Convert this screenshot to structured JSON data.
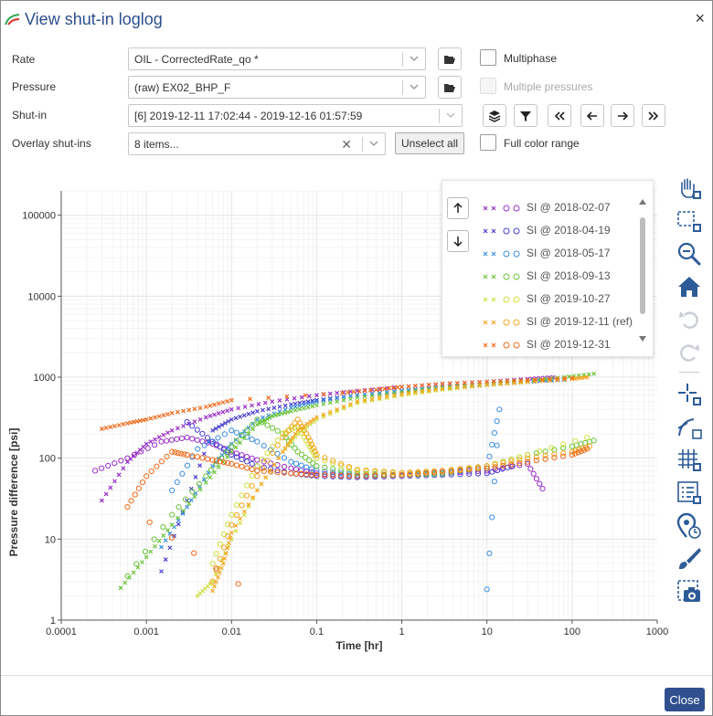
{
  "window": {
    "title": "View shut-in loglog",
    "close_glyph": "×"
  },
  "form": {
    "rate": {
      "label": "Rate",
      "value": "OIL - CorrectedRate_qo *"
    },
    "pressure": {
      "label": "Pressure",
      "value": "(raw) EX02_BHP_F"
    },
    "shutin": {
      "label": "Shut-in",
      "value": "[6] 2019-12-11 17:02:44 - 2019-12-16 01:57:59"
    },
    "overlay": {
      "label": "Overlay shut-ins",
      "value": "8 items...",
      "unselect_label": "Unselect all"
    },
    "multiphase_label": "Multiphase",
    "multiple_pressures_label": "Multiple pressures",
    "full_color_range_label": "Full color range"
  },
  "nav_icons": [
    "layers-icon",
    "filter-icon",
    "first-icon",
    "prev-icon",
    "next-icon",
    "last-icon"
  ],
  "toolbar_icons": [
    "pan-icon",
    "box-zoom-icon",
    "zoom-out-icon",
    "home-icon",
    "undo-icon",
    "redo-icon",
    "crosshair-icon",
    "line-tool-icon",
    "grid-icon",
    "legend-toggle-icon",
    "hover-icon",
    "style-icon",
    "screenshot-icon"
  ],
  "legend": {
    "items": [
      {
        "label": "SI @ 2018-02-07",
        "color": "#9b30c8"
      },
      {
        "label": "SI @ 2018-04-19",
        "color": "#4a3fd0"
      },
      {
        "label": "SI @ 2018-05-17",
        "color": "#3d8fe0"
      },
      {
        "label": "SI @ 2018-09-13",
        "color": "#6cc43c"
      },
      {
        "label": "SI @ 2019-10-27",
        "color": "#cfe040"
      },
      {
        "label": "SI @ 2019-12-11 (ref)",
        "color": "#f5a623"
      },
      {
        "label": "SI @ 2019-12-31",
        "color": "#f06a1a"
      }
    ]
  },
  "chart_data": {
    "type": "scatter",
    "xscale": "log",
    "yscale": "log",
    "xlabel": "Time [hr]",
    "ylabel": "Pressure difference [psi]",
    "xlim": [
      0.0001,
      1000
    ],
    "ylim": [
      1,
      200000
    ],
    "x_ticks": [
      "0.0001",
      "0.001",
      "0.01",
      "0.1",
      "1",
      "10",
      "100",
      "1000"
    ],
    "y_ticks": [
      "1",
      "10",
      "100",
      "1000",
      "10000",
      "100000"
    ],
    "grid": true,
    "series": [
      {
        "name": "SI @ 2018-02-07",
        "color": "#9b30c8",
        "pressure": [
          [
            0.0003,
            30
          ],
          [
            0.0006,
            90
          ],
          [
            0.001,
            150
          ],
          [
            0.002,
            220
          ],
          [
            0.005,
            320
          ],
          [
            0.01,
            400
          ],
          [
            0.03,
            500
          ],
          [
            0.1,
            600
          ],
          [
            0.3,
            680
          ],
          [
            1,
            760
          ],
          [
            3,
            820
          ],
          [
            10,
            880
          ],
          [
            30,
            950
          ],
          [
            60,
            1000
          ]
        ],
        "derivative": [
          [
            0.00025,
            70
          ],
          [
            0.0006,
            100
          ],
          [
            0.0015,
            160
          ],
          [
            0.003,
            180
          ],
          [
            0.006,
            150
          ],
          [
            0.01,
            120
          ],
          [
            0.02,
            95
          ],
          [
            0.05,
            75
          ],
          [
            0.1,
            65
          ],
          [
            0.3,
            60
          ],
          [
            1,
            62
          ],
          [
            3,
            65
          ],
          [
            10,
            70
          ],
          [
            30,
            85
          ],
          [
            45,
            42
          ]
        ]
      },
      {
        "name": "SI @ 2018-04-19",
        "color": "#4a3fd0",
        "pressure": [
          [
            0.0015,
            4
          ],
          [
            0.003,
            30
          ],
          [
            0.006,
            220
          ],
          [
            0.01,
            300
          ],
          [
            0.02,
            380
          ],
          [
            0.05,
            460
          ],
          [
            0.1,
            520
          ],
          [
            0.3,
            600
          ],
          [
            1,
            680
          ],
          [
            3,
            760
          ],
          [
            10,
            820
          ],
          [
            30,
            880
          ],
          [
            80,
            930
          ]
        ],
        "derivative": [
          [
            0.003,
            280
          ],
          [
            0.006,
            160
          ],
          [
            0.01,
            110
          ],
          [
            0.02,
            80
          ],
          [
            0.05,
            65
          ],
          [
            0.1,
            60
          ],
          [
            0.3,
            58
          ],
          [
            1,
            60
          ],
          [
            3,
            62
          ],
          [
            10,
            65
          ],
          [
            20,
            80
          ]
        ]
      },
      {
        "name": "SI @ 2018-05-17",
        "color": "#3d8fe0",
        "pressure": [
          [
            0.0015,
            8
          ],
          [
            0.003,
            25
          ],
          [
            0.006,
            80
          ],
          [
            0.01,
            150
          ],
          [
            0.02,
            300
          ],
          [
            0.05,
            420
          ],
          [
            0.1,
            500
          ],
          [
            0.3,
            600
          ],
          [
            1,
            680
          ],
          [
            3,
            760
          ],
          [
            10,
            820
          ],
          [
            30,
            880
          ],
          [
            80,
            940
          ]
        ],
        "derivative": [
          [
            0.002,
            40
          ],
          [
            0.004,
            130
          ],
          [
            0.01,
            220
          ],
          [
            0.02,
            160
          ],
          [
            0.05,
            90
          ],
          [
            0.1,
            70
          ],
          [
            0.3,
            62
          ],
          [
            1,
            62
          ],
          [
            3,
            65
          ],
          [
            10,
            75
          ],
          [
            14,
            400
          ],
          [
            10,
            2.4
          ]
        ]
      },
      {
        "name": "SI @ 2018-09-13",
        "color": "#6cc43c",
        "pressure": [
          [
            0.0005,
            2.5
          ],
          [
            0.001,
            6
          ],
          [
            0.002,
            15
          ],
          [
            0.005,
            50
          ],
          [
            0.01,
            120
          ],
          [
            0.02,
            260
          ],
          [
            0.03,
            330
          ],
          [
            0.05,
            380
          ],
          [
            0.1,
            450
          ],
          [
            0.3,
            560
          ],
          [
            1,
            650
          ],
          [
            3,
            740
          ],
          [
            10,
            820
          ],
          [
            30,
            900
          ],
          [
            80,
            1000
          ],
          [
            180,
            1100
          ]
        ],
        "derivative": [
          [
            0.0006,
            3.5
          ],
          [
            0.002,
            20
          ],
          [
            0.005,
            60
          ],
          [
            0.01,
            140
          ],
          [
            0.02,
            300
          ],
          [
            0.04,
            200
          ],
          [
            0.06,
            120
          ],
          [
            0.1,
            80
          ],
          [
            0.3,
            65
          ],
          [
            1,
            62
          ],
          [
            3,
            64
          ],
          [
            10,
            80
          ],
          [
            30,
            110
          ],
          [
            100,
            140
          ],
          [
            180,
            165
          ]
        ]
      },
      {
        "name": "SI @ 2019-10-27",
        "color": "#cfe040",
        "pressure": [
          [
            0.004,
            2
          ],
          [
            0.006,
            3
          ],
          [
            0.01,
            10
          ],
          [
            0.02,
            40
          ],
          [
            0.04,
            120
          ],
          [
            0.06,
            200
          ],
          [
            0.1,
            300
          ],
          [
            0.3,
            480
          ],
          [
            1,
            600
          ],
          [
            3,
            700
          ],
          [
            10,
            800
          ],
          [
            30,
            880
          ],
          [
            100,
            980
          ]
        ],
        "derivative": [
          [
            0.006,
            5
          ],
          [
            0.01,
            20
          ],
          [
            0.02,
            80
          ],
          [
            0.04,
            200
          ],
          [
            0.06,
            250
          ],
          [
            0.08,
            150
          ],
          [
            0.1,
            100
          ],
          [
            0.3,
            70
          ],
          [
            1,
            65
          ],
          [
            3,
            68
          ],
          [
            10,
            80
          ],
          [
            30,
            110
          ],
          [
            150,
            180
          ]
        ]
      },
      {
        "name": "SI @ 2019-12-11 (ref)",
        "color": "#f5a623",
        "pressure": [
          [
            0.006,
            2.3
          ],
          [
            0.008,
            5
          ],
          [
            0.01,
            12
          ],
          [
            0.02,
            40
          ],
          [
            0.04,
            120
          ],
          [
            0.06,
            220
          ],
          [
            0.1,
            320
          ],
          [
            0.3,
            500
          ],
          [
            1,
            620
          ],
          [
            3,
            720
          ],
          [
            10,
            800
          ],
          [
            30,
            870
          ],
          [
            100,
            950
          ],
          [
            150,
            1000
          ]
        ],
        "derivative": [
          [
            0.006,
            3
          ],
          [
            0.01,
            15
          ],
          [
            0.02,
            60
          ],
          [
            0.04,
            180
          ],
          [
            0.06,
            300
          ],
          [
            0.08,
            180
          ],
          [
            0.1,
            110
          ],
          [
            0.3,
            72
          ],
          [
            1,
            66
          ],
          [
            3,
            70
          ],
          [
            10,
            80
          ],
          [
            30,
            100
          ],
          [
            100,
            120
          ],
          [
            160,
            140
          ]
        ]
      },
      {
        "name": "SI @ 2019-12-31",
        "color": "#f06a1a",
        "pressure": [
          [
            0.0003,
            230
          ],
          [
            0.0006,
            270
          ],
          [
            0.001,
            300
          ],
          [
            0.002,
            360
          ],
          [
            0.005,
            430
          ],
          [
            0.01,
            520
          ],
          [
            0.2,
            640
          ],
          [
            0.5,
            700
          ],
          [
            1,
            760
          ],
          [
            3,
            830
          ],
          [
            10,
            880
          ],
          [
            30,
            920
          ],
          [
            100,
            980
          ]
        ],
        "derivative": [
          [
            0.012,
            2.8
          ],
          [
            0.0006,
            25
          ],
          [
            0.001,
            60
          ],
          [
            0.002,
            120
          ],
          [
            0.003,
            110
          ],
          [
            0.006,
            95
          ],
          [
            0.01,
            85
          ],
          [
            0.02,
            70
          ],
          [
            0.05,
            65
          ],
          [
            0.1,
            62
          ],
          [
            0.3,
            60
          ],
          [
            1,
            62
          ],
          [
            3,
            68
          ],
          [
            10,
            75
          ],
          [
            30,
            90
          ],
          [
            100,
            110
          ],
          [
            150,
            130
          ]
        ]
      }
    ]
  },
  "footer": {
    "close_label": "Close"
  }
}
